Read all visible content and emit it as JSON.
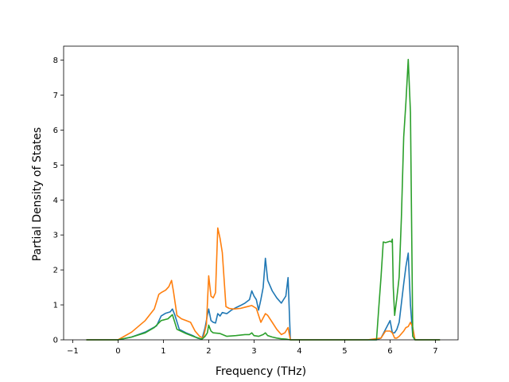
{
  "chart_data": {
    "type": "line",
    "title": "",
    "xlabel": "Frequency (THz)",
    "ylabel": "Partial Density of States",
    "xlim": [
      -1.2,
      7.5
    ],
    "ylim": [
      0,
      8.4
    ],
    "xticks": [
      -1,
      0,
      1,
      2,
      3,
      4,
      5,
      6,
      7
    ],
    "yticks": [
      0,
      1,
      2,
      3,
      4,
      5,
      6,
      7,
      8
    ],
    "grid": false,
    "legend": "none",
    "series": [
      {
        "color": "#1f77b4",
        "x": [
          -0.7,
          0.0,
          0.3,
          0.6,
          0.85,
          0.95,
          1.05,
          1.15,
          1.2,
          1.25,
          1.35,
          1.5,
          1.65,
          1.75,
          1.85,
          1.92,
          1.97,
          2.0,
          2.05,
          2.1,
          2.15,
          2.2,
          2.25,
          2.3,
          2.4,
          2.5,
          2.6,
          2.7,
          2.8,
          2.9,
          2.95,
          3.0,
          3.05,
          3.1,
          3.15,
          3.2,
          3.25,
          3.3,
          3.4,
          3.5,
          3.6,
          3.65,
          3.7,
          3.75,
          3.8,
          4.5,
          5.5,
          5.7,
          5.8,
          5.9,
          6.0,
          6.05,
          6.1,
          6.15,
          6.2,
          6.3,
          6.35,
          6.4,
          6.45,
          6.5,
          6.55,
          7.1
        ],
        "y": [
          0,
          0,
          0.08,
          0.22,
          0.4,
          0.68,
          0.76,
          0.8,
          0.88,
          0.72,
          0.3,
          0.2,
          0.12,
          0.05,
          0.02,
          0.35,
          0.7,
          0.88,
          0.55,
          0.5,
          0.48,
          0.75,
          0.68,
          0.78,
          0.75,
          0.85,
          0.92,
          0.98,
          1.05,
          1.15,
          1.4,
          1.25,
          1.15,
          0.85,
          1.15,
          1.5,
          2.33,
          1.7,
          1.4,
          1.2,
          1.05,
          1.15,
          1.25,
          1.78,
          0,
          0,
          0,
          0,
          0.05,
          0.3,
          0.55,
          0.2,
          0.2,
          0.3,
          0.5,
          1.6,
          2.1,
          2.48,
          1.0,
          0.1,
          0,
          0
        ]
      },
      {
        "color": "#ff7f0e",
        "x": [
          -0.7,
          0.0,
          0.3,
          0.6,
          0.8,
          0.9,
          0.95,
          1.05,
          1.12,
          1.18,
          1.22,
          1.3,
          1.4,
          1.5,
          1.6,
          1.7,
          1.8,
          1.88,
          1.95,
          2.0,
          2.05,
          2.1,
          2.15,
          2.2,
          2.25,
          2.3,
          2.38,
          2.45,
          2.55,
          2.7,
          2.85,
          2.95,
          3.05,
          3.15,
          3.25,
          3.3,
          3.4,
          3.5,
          3.6,
          3.68,
          3.75,
          3.8,
          4.5,
          5.5,
          5.8,
          5.9,
          6.0,
          6.05,
          6.1,
          6.15,
          6.2,
          6.3,
          6.35,
          6.4,
          6.45,
          6.5,
          6.55,
          7.1
        ],
        "y": [
          0,
          0,
          0.22,
          0.55,
          0.88,
          1.3,
          1.35,
          1.42,
          1.52,
          1.7,
          1.4,
          0.7,
          0.6,
          0.55,
          0.5,
          0.25,
          0.1,
          0.05,
          0.45,
          1.83,
          1.25,
          1.2,
          1.35,
          3.2,
          2.9,
          2.5,
          0.95,
          0.9,
          0.88,
          0.9,
          0.95,
          0.98,
          0.9,
          0.5,
          0.75,
          0.7,
          0.5,
          0.3,
          0.15,
          0.2,
          0.35,
          0,
          0,
          0,
          0.05,
          0.25,
          0.25,
          0.2,
          0.05,
          0.05,
          0.1,
          0.25,
          0.35,
          0.38,
          0.5,
          0.35,
          0,
          0
        ]
      },
      {
        "color": "#2ca02c",
        "x": [
          -0.7,
          0.0,
          0.3,
          0.6,
          0.8,
          0.95,
          1.1,
          1.2,
          1.3,
          1.5,
          1.7,
          1.85,
          1.92,
          1.97,
          2.0,
          2.05,
          2.1,
          2.25,
          2.4,
          2.6,
          2.8,
          2.9,
          2.95,
          3.0,
          3.1,
          3.2,
          3.25,
          3.3,
          3.4,
          3.5,
          3.6,
          3.7,
          3.8,
          4.5,
          5.5,
          5.7,
          5.75,
          5.8,
          5.85,
          5.9,
          6.0,
          6.03,
          6.05,
          6.07,
          6.1,
          6.15,
          6.2,
          6.25,
          6.3,
          6.35,
          6.4,
          6.45,
          6.5,
          6.55,
          7.1
        ],
        "y": [
          0,
          0,
          0.08,
          0.2,
          0.35,
          0.55,
          0.6,
          0.72,
          0.3,
          0.18,
          0.08,
          0.02,
          0.1,
          0.2,
          0.42,
          0.25,
          0.2,
          0.18,
          0.1,
          0.12,
          0.15,
          0.15,
          0.2,
          0.12,
          0.1,
          0.15,
          0.2,
          0.12,
          0.08,
          0.05,
          0.03,
          0.02,
          0,
          0,
          0,
          0,
          0.9,
          1.8,
          2.8,
          2.78,
          2.82,
          2.8,
          2.88,
          1.5,
          0.7,
          1.2,
          1.8,
          3.5,
          5.8,
          6.8,
          8.02,
          6.5,
          0.1,
          0,
          0
        ]
      }
    ]
  }
}
